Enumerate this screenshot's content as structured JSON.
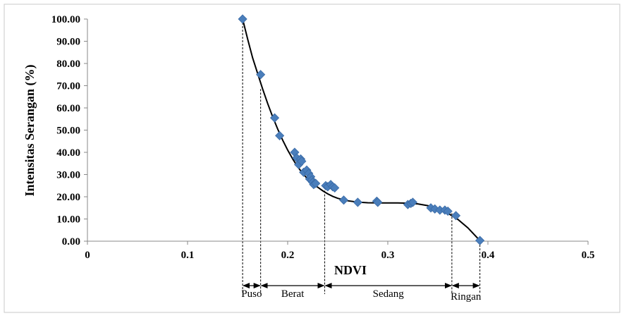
{
  "chart_data": {
    "type": "scatter",
    "title": "",
    "xlabel": "NDVI",
    "ylabel": "Intensitas Serangan (%)",
    "xlim": [
      0,
      0.5
    ],
    "ylim": [
      0,
      100
    ],
    "x_ticks": [
      "0",
      "0.1",
      "0.2",
      "0.3",
      "0.4",
      "0.5"
    ],
    "y_ticks": [
      "0.00",
      "10.00",
      "20.00",
      "30.00",
      "40.00",
      "50.00",
      "60.00",
      "70.00",
      "80.00",
      "90.00",
      "100.00"
    ],
    "grid": false,
    "legend": "none",
    "marker_color": "#4a7ebb",
    "trendline_color": "#000000",
    "series": [
      {
        "points": [
          [
            0.155,
            100
          ],
          [
            0.173,
            75
          ],
          [
            0.187,
            55.5
          ],
          [
            0.192,
            47.5
          ],
          [
            0.207,
            40
          ],
          [
            0.209,
            37.5
          ],
          [
            0.211,
            34.5
          ],
          [
            0.213,
            37
          ],
          [
            0.214,
            36
          ],
          [
            0.216,
            31
          ],
          [
            0.219,
            32
          ],
          [
            0.221,
            30.5
          ],
          [
            0.222,
            28
          ],
          [
            0.223,
            29
          ],
          [
            0.224,
            27.5
          ],
          [
            0.225,
            26.5
          ],
          [
            0.226,
            25.5
          ],
          [
            0.228,
            26
          ],
          [
            0.238,
            25
          ],
          [
            0.24,
            24.5
          ],
          [
            0.243,
            25.5
          ],
          [
            0.245,
            24.5
          ],
          [
            0.247,
            24
          ],
          [
            0.256,
            18.5
          ],
          [
            0.27,
            17.5
          ],
          [
            0.289,
            18
          ],
          [
            0.29,
            17.5
          ],
          [
            0.32,
            16.5
          ],
          [
            0.323,
            17
          ],
          [
            0.325,
            17.5
          ],
          [
            0.343,
            15
          ],
          [
            0.347,
            14.5
          ],
          [
            0.352,
            14
          ],
          [
            0.357,
            14
          ],
          [
            0.36,
            13.5
          ],
          [
            0.368,
            11.5
          ],
          [
            0.392,
            0.3
          ]
        ]
      }
    ],
    "trendline": [
      [
        0.155,
        100
      ],
      [
        0.16,
        91
      ],
      [
        0.165,
        82.5
      ],
      [
        0.17,
        75.5
      ],
      [
        0.175,
        68.5
      ],
      [
        0.18,
        62
      ],
      [
        0.185,
        56
      ],
      [
        0.19,
        50.5
      ],
      [
        0.195,
        45.5
      ],
      [
        0.2,
        41
      ],
      [
        0.205,
        37
      ],
      [
        0.21,
        33.5
      ],
      [
        0.215,
        30.5
      ],
      [
        0.22,
        28
      ],
      [
        0.225,
        26
      ],
      [
        0.23,
        24.3
      ],
      [
        0.235,
        22.7
      ],
      [
        0.24,
        21.3
      ],
      [
        0.245,
        20.2
      ],
      [
        0.25,
        19.3
      ],
      [
        0.26,
        18.2
      ],
      [
        0.27,
        17.6
      ],
      [
        0.28,
        17.3
      ],
      [
        0.29,
        17.2
      ],
      [
        0.3,
        17.2
      ],
      [
        0.31,
        17.2
      ],
      [
        0.32,
        17.1
      ],
      [
        0.33,
        16.8
      ],
      [
        0.34,
        16
      ],
      [
        0.35,
        14.6
      ],
      [
        0.36,
        12.6
      ],
      [
        0.37,
        9.8
      ],
      [
        0.38,
        6
      ],
      [
        0.39,
        1.2
      ],
      [
        0.392,
        0
      ]
    ],
    "guide_lines_x": [
      0.155,
      0.173,
      0.237,
      0.364,
      0.392
    ],
    "categories": [
      {
        "label": "Puso",
        "from": 0.155,
        "to": 0.173
      },
      {
        "label": "Berat",
        "from": 0.173,
        "to": 0.237
      },
      {
        "label": "Sedang",
        "from": 0.237,
        "to": 0.364
      },
      {
        "label": "Ringan",
        "from": 0.364,
        "to": 0.392
      }
    ]
  }
}
